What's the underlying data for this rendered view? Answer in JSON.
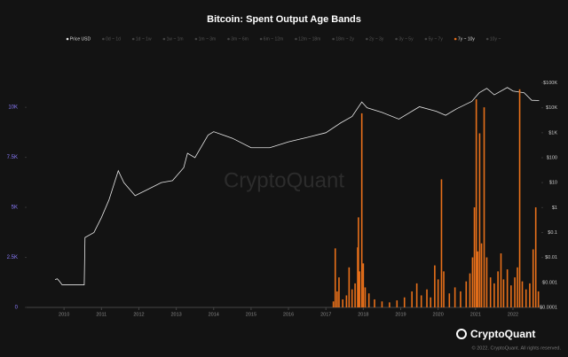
{
  "chart_data": {
    "type": "combo",
    "title": "Bitcoin: Spent Output Age Bands",
    "watermark": "CryptoQuant",
    "footer_brand": "CryptoQuant",
    "copyright": "© 2022. CryptoQuant. All rights reserved.",
    "xlim": [
      2009,
      2022.76
    ],
    "xticks": [
      2010,
      2011,
      2012,
      2013,
      2014,
      2015,
      2016,
      2017,
      2018,
      2019,
      2020,
      2021,
      2022
    ],
    "ylim": [
      0,
      11600
    ],
    "yticks": [
      0,
      {
        "value": 2500,
        "label": "2.5K"
      },
      {
        "value": 5000,
        "label": "5K"
      },
      {
        "value": 7500,
        "label": "7.5K"
      },
      {
        "value": 10000,
        "label": "10K"
      }
    ],
    "y2lim": [
      0.0001,
      200000
    ],
    "y2log": true,
    "y2ticks": [
      {
        "value": 0.0001,
        "label": "$0.0001"
      },
      {
        "value": 0.001,
        "label": "$0.001"
      },
      {
        "value": 0.01,
        "label": "$0.01"
      },
      {
        "value": 0.1,
        "label": "$0.1"
      },
      {
        "value": 1,
        "label": "$1"
      },
      {
        "value": 10,
        "label": "$10"
      },
      {
        "value": 100,
        "label": "$100"
      },
      {
        "value": 1000,
        "label": "$1K"
      },
      {
        "value": 10000,
        "label": "$10K"
      },
      {
        "value": 100000,
        "label": "$100K"
      }
    ],
    "grid": false,
    "series": [
      {
        "name": "Price USD",
        "color": "#e8e8e8",
        "type": "line",
        "axis": "y2",
        "visible": true,
        "x": [
          2009.76,
          2009.82,
          2009.88,
          2009.95,
          2010.0,
          2010.3,
          2010.54,
          2010.56,
          2010.8,
          2011.0,
          2011.2,
          2011.45,
          2011.6,
          2011.9,
          2012.2,
          2012.6,
          2012.9,
          2013.2,
          2013.3,
          2013.5,
          2013.85,
          2014.0,
          2014.5,
          2015.0,
          2015.5,
          2016.0,
          2016.5,
          2017.0,
          2017.4,
          2017.7,
          2017.96,
          2018.1,
          2018.5,
          2018.95,
          2019.5,
          2019.95,
          2020.2,
          2020.5,
          2020.9,
          2021.1,
          2021.3,
          2021.5,
          2021.85,
          2022.0,
          2022.3,
          2022.5,
          2022.7
        ],
        "values": [
          0.0013,
          0.0014,
          0.0011,
          0.0008,
          0.0008,
          0.0008,
          0.0008,
          0.063,
          0.1,
          0.4,
          2,
          30,
          10,
          3,
          5,
          10,
          12,
          40,
          150,
          100,
          800,
          1100,
          600,
          250,
          250,
          430,
          650,
          1000,
          2500,
          4500,
          17000,
          10000,
          6500,
          3500,
          11000,
          7200,
          5000,
          9200,
          18000,
          40000,
          60000,
          33000,
          65000,
          47000,
          40000,
          20000,
          19500
        ]
      },
      {
        "name": "0d ~ 1d",
        "color": "#555555",
        "visible": false
      },
      {
        "name": "1d ~ 1w",
        "color": "#555555",
        "visible": false
      },
      {
        "name": "1w ~ 1m",
        "color": "#555555",
        "visible": false
      },
      {
        "name": "1m ~ 3m",
        "color": "#555555",
        "visible": false
      },
      {
        "name": "3m ~ 6m",
        "color": "#555555",
        "visible": false
      },
      {
        "name": "6m ~ 12m",
        "color": "#555555",
        "visible": false
      },
      {
        "name": "12m ~ 18m",
        "color": "#555555",
        "visible": false
      },
      {
        "name": "18m ~ 2y",
        "color": "#555555",
        "visible": false
      },
      {
        "name": "2y ~ 3y",
        "color": "#555555",
        "visible": false
      },
      {
        "name": "3y ~ 5y",
        "color": "#555555",
        "visible": false
      },
      {
        "name": "5y ~ 7y",
        "color": "#555555",
        "visible": false
      },
      {
        "name": "7y ~ 10y",
        "color": "#e8701a",
        "type": "bar",
        "axis": "y",
        "visible": true,
        "x": [
          2017.2,
          2017.25,
          2017.3,
          2017.35,
          2017.45,
          2017.55,
          2017.62,
          2017.7,
          2017.78,
          2017.85,
          2017.87,
          2017.9,
          2017.96,
          2018.0,
          2018.05,
          2018.15,
          2018.3,
          2018.5,
          2018.7,
          2018.9,
          2019.1,
          2019.3,
          2019.43,
          2019.55,
          2019.7,
          2019.8,
          2019.91,
          2020.0,
          2020.09,
          2020.15,
          2020.3,
          2020.45,
          2020.6,
          2020.75,
          2020.85,
          2020.92,
          2020.97,
          2021.02,
          2021.06,
          2021.11,
          2021.16,
          2021.23,
          2021.3,
          2021.4,
          2021.5,
          2021.6,
          2021.68,
          2021.75,
          2021.85,
          2021.95,
          2022.05,
          2022.12,
          2022.18,
          2022.25,
          2022.35,
          2022.45,
          2022.54,
          2022.61,
          2022.68
        ],
        "values": [
          300,
          2950,
          800,
          1500,
          400,
          600,
          2000,
          900,
          1200,
          3000,
          4500,
          1800,
          9700,
          2200,
          1000,
          700,
          400,
          300,
          250,
          350,
          500,
          800,
          1200,
          600,
          900,
          500,
          2100,
          1400,
          6400,
          1800,
          700,
          1000,
          800,
          1300,
          1700,
          2500,
          5000,
          10400,
          2800,
          8700,
          3200,
          10000,
          2500,
          1500,
          1200,
          1800,
          2700,
          1400,
          1900,
          1100,
          1500,
          2000,
          10900,
          1300,
          900,
          1200,
          2900,
          5000,
          800
        ]
      },
      {
        "name": "10y ~",
        "color": "#555555",
        "visible": false
      }
    ]
  }
}
